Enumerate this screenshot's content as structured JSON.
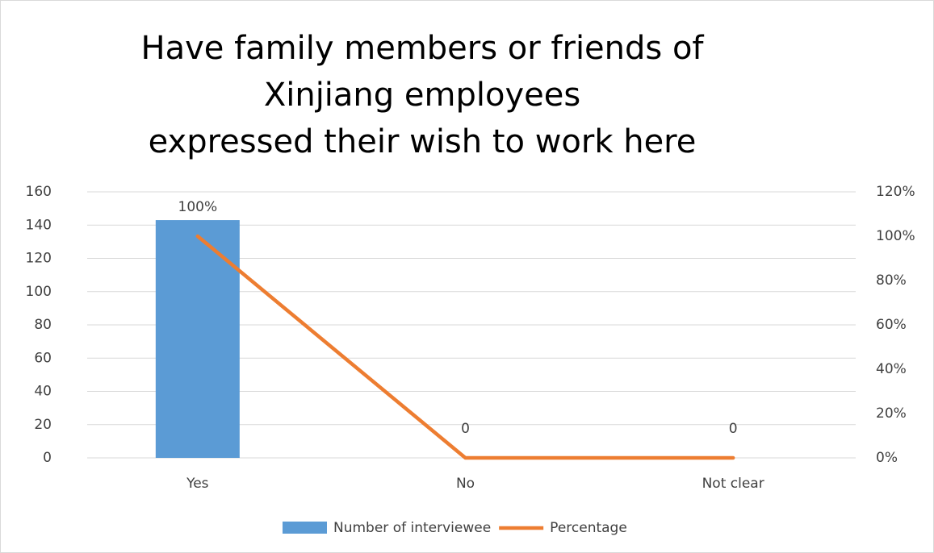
{
  "chart_data": {
    "type": "bar_line",
    "title_lines": [
      "Have family members or friends of",
      "Xinjiang employees",
      "expressed their wish to work here"
    ],
    "categories": [
      "Yes",
      "No",
      "Not clear"
    ],
    "series": [
      {
        "name": "Number of interviewee",
        "color": "#5b9bd5",
        "type": "bar",
        "values": [
          143,
          0,
          0
        ]
      },
      {
        "name": "Percentage",
        "color": "#ed7d31",
        "type": "line",
        "axis": "y2",
        "values": [
          100,
          0,
          0
        ],
        "value_labels": [
          "100%",
          "0",
          "0"
        ]
      }
    ],
    "ylim": [
      0,
      160
    ],
    "yticks": [
      0,
      20,
      40,
      60,
      80,
      100,
      120,
      140,
      160
    ],
    "y2lim": [
      0,
      120
    ],
    "y2ticks": [
      {
        "value": 0,
        "label": "0%"
      },
      {
        "value": 20,
        "label": "20%"
      },
      {
        "value": 40,
        "label": "40%"
      },
      {
        "value": 60,
        "label": "60%"
      },
      {
        "value": 80,
        "label": "80%"
      },
      {
        "value": 100,
        "label": "100%"
      },
      {
        "value": 120,
        "label": "120%"
      }
    ],
    "grid": true,
    "legend": "bottom"
  }
}
